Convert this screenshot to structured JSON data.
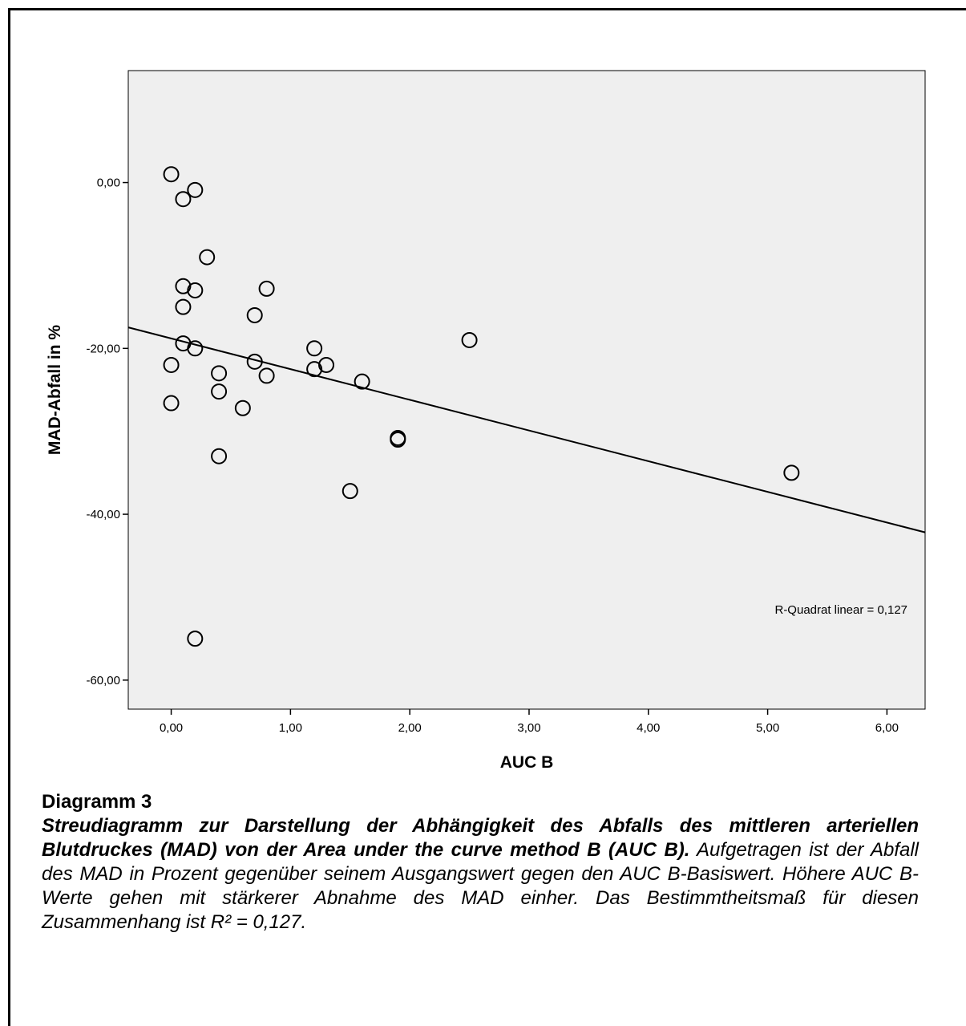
{
  "chart_data": {
    "type": "scatter",
    "xlabel": "AUC B",
    "ylabel": "MAD-Abfall in %",
    "xlim": [
      -0.36,
      6.32
    ],
    "ylim": [
      -63.5,
      13.5
    ],
    "x_ticks": [
      "0,00",
      "1,00",
      "2,00",
      "3,00",
      "4,00",
      "5,00",
      "6,00"
    ],
    "x_tick_values": [
      0,
      1,
      2,
      3,
      4,
      5,
      6
    ],
    "y_ticks": [
      "0,00",
      "-20,00",
      "-40,00",
      "-60,00"
    ],
    "y_tick_values": [
      0,
      -20,
      -40,
      -60
    ],
    "grid": false,
    "plot_background": "#efefef",
    "points": [
      {
        "x": 0.0,
        "y": 1.0
      },
      {
        "x": 0.2,
        "y": -0.9
      },
      {
        "x": 0.1,
        "y": -2.0
      },
      {
        "x": 0.3,
        "y": -9.0
      },
      {
        "x": 0.1,
        "y": -12.5
      },
      {
        "x": 0.2,
        "y": -13.0
      },
      {
        "x": 0.8,
        "y": -12.8
      },
      {
        "x": 0.1,
        "y": -15.0
      },
      {
        "x": 0.7,
        "y": -16.0
      },
      {
        "x": 0.1,
        "y": -19.4
      },
      {
        "x": 0.2,
        "y": -20.0
      },
      {
        "x": 1.2,
        "y": -20.0
      },
      {
        "x": 2.5,
        "y": -19.0
      },
      {
        "x": 0.0,
        "y": -22.0
      },
      {
        "x": 0.7,
        "y": -21.6
      },
      {
        "x": 1.3,
        "y": -22.0
      },
      {
        "x": 1.2,
        "y": -22.5
      },
      {
        "x": 0.4,
        "y": -23.0
      },
      {
        "x": 0.8,
        "y": -23.3
      },
      {
        "x": 1.6,
        "y": -24.0
      },
      {
        "x": 0.4,
        "y": -25.2
      },
      {
        "x": 0.0,
        "y": -26.6
      },
      {
        "x": 0.6,
        "y": -27.2
      },
      {
        "x": 1.9,
        "y": -30.8
      },
      {
        "x": 1.9,
        "y": -31.0
      },
      {
        "x": 0.4,
        "y": -33.0
      },
      {
        "x": 1.5,
        "y": -37.2
      },
      {
        "x": 5.2,
        "y": -35.0
      },
      {
        "x": 0.2,
        "y": -55.0
      }
    ],
    "fit_line": {
      "intercept": -18.8,
      "slope": -3.7
    },
    "annotation": "R-Quadrat linear = 0,127"
  },
  "caption": {
    "heading": "Diagramm 3",
    "title_bold": "Streudiagramm zur Darstellung der Abhängigkeit des Abfalls des mittleren arteriellen Blutdruckes (MAD) von der Area under the curve method B (AUC B).",
    "text": " Aufgetragen ist der Abfall des MAD in Prozent gegenüber seinem Ausgangswert gegen den AUC B-Basiswert. Höhere AUC B-Werte gehen mit stärkerer Abnahme des MAD einher. Das Bestimmtheitsmaß für diesen Zusammenhang ist R² = 0,127."
  }
}
